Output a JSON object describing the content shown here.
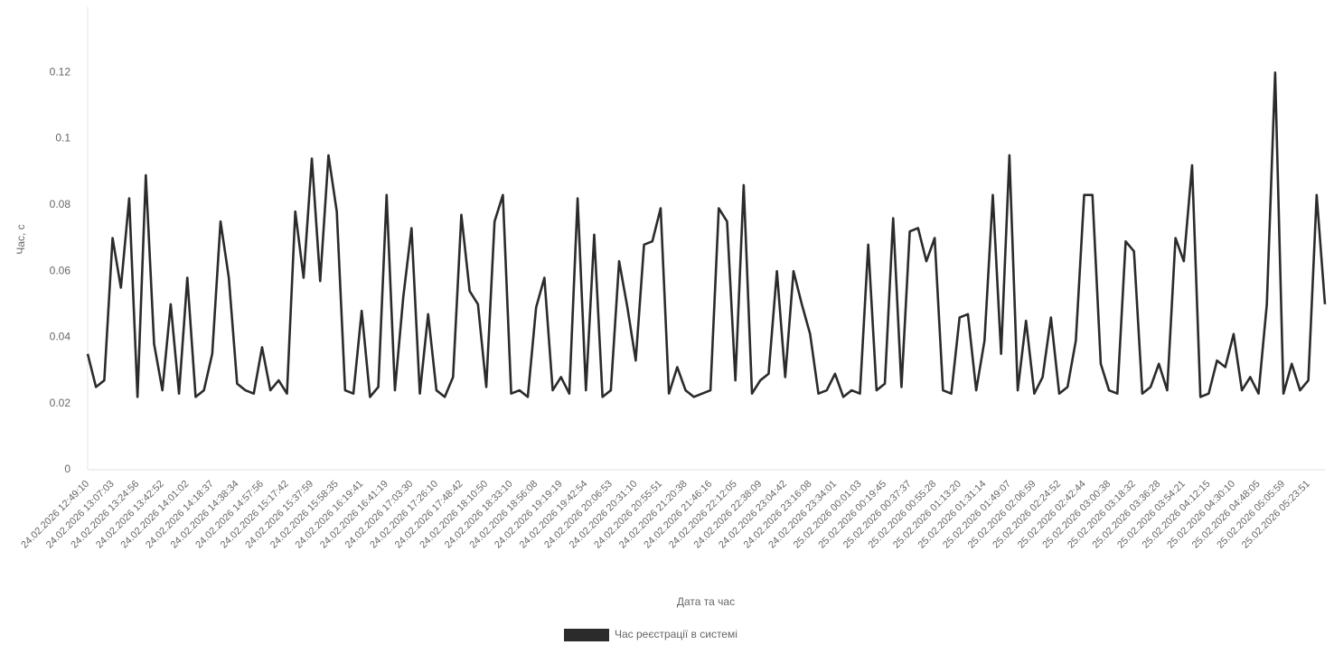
{
  "chart_data": {
    "type": "line",
    "y_label": "Час, с",
    "x_label": "Дата та час",
    "ylim": [
      0,
      0.14
    ],
    "yticks": [
      0,
      0.02,
      0.04,
      0.06,
      0.08,
      0.1,
      0.12
    ],
    "grid": true,
    "legend": "bottom",
    "categories": [
      "24.02.2026 12:49:10",
      null,
      null,
      "24.02.2026 13:07:03",
      null,
      null,
      "24.02.2026 13:24:56",
      null,
      null,
      "24.02.2026 13:42:52",
      null,
      null,
      "24.02.2026 14:01:02",
      null,
      null,
      "24.02.2026 14:18:37",
      null,
      null,
      "24.02.2026 14:38:34",
      null,
      null,
      "24.02.2026 14:57:56",
      null,
      null,
      "24.02.2026 15:17:42",
      null,
      null,
      "24.02.2026 15:37:59",
      null,
      null,
      "24.02.2026 15:58:35",
      null,
      null,
      "24.02.2026 16:19:41",
      null,
      null,
      "24.02.2026 16:41:19",
      null,
      null,
      "24.02.2026 17:03:30",
      null,
      null,
      "24.02.2026 17:26:10",
      null,
      null,
      "24.02.2026 17:48:42",
      null,
      null,
      "24.02.2026 18:10:50",
      null,
      null,
      "24.02.2026 18:33:10",
      null,
      null,
      "24.02.2026 18:56:08",
      null,
      null,
      "24.02.2026 19:19:19",
      null,
      null,
      "24.02.2026 19:42:54",
      null,
      null,
      "24.02.2026 20:06:53",
      null,
      null,
      "24.02.2026 20:31:10",
      null,
      null,
      "24.02.2026 20:55:51",
      null,
      null,
      "24.02.2026 21:20:38",
      null,
      null,
      "24.02.2026 21:46:16",
      null,
      null,
      "24.02.2026 22:12:05",
      null,
      null,
      "24.02.2026 22:38:09",
      null,
      null,
      "24.02.2026 23:04:42",
      null,
      null,
      "24.02.2026 23:16:08",
      null,
      null,
      "24.02.2026 23:34:01",
      null,
      null,
      "25.02.2026 00:01:03",
      null,
      null,
      "25.02.2026 00:19:45",
      null,
      null,
      "25.02.2026 00:37:37",
      null,
      null,
      "25.02.2026 00:55:28",
      null,
      null,
      "25.02.2026 01:13:20",
      null,
      null,
      "25.02.2026 01:31:14",
      null,
      null,
      "25.02.2026 01:49:07",
      null,
      null,
      "25.02.2026 02:06:59",
      null,
      null,
      "25.02.2026 02:24:52",
      null,
      null,
      "25.02.2026 02:42:44",
      null,
      null,
      "25.02.2026 03:00:38",
      null,
      null,
      "25.02.2026 03:18:32",
      null,
      null,
      "25.02.2026 03:36:28",
      null,
      null,
      "25.02.2026 03:54:21",
      null,
      null,
      "25.02.2026 04:12:15",
      null,
      null,
      "25.02.2026 04:30:10",
      null,
      null,
      "25.02.2026 04:48:05",
      null,
      null,
      "25.02.2026 05:05:59",
      null,
      null,
      "25.02.2026 05:23:51",
      null,
      null
    ],
    "series": [
      {
        "name": "Час реєстрації в системі",
        "color": "#2b2b2b",
        "values": [
          0.035,
          0.025,
          0.027,
          0.07,
          0.055,
          0.082,
          0.022,
          0.089,
          0.038,
          0.024,
          0.05,
          0.023,
          0.058,
          0.022,
          0.024,
          0.035,
          0.075,
          0.058,
          0.026,
          0.024,
          0.023,
          0.037,
          0.024,
          0.027,
          0.023,
          0.078,
          0.058,
          0.094,
          0.057,
          0.095,
          0.078,
          0.024,
          0.023,
          0.048,
          0.022,
          0.025,
          0.083,
          0.024,
          0.052,
          0.073,
          0.023,
          0.047,
          0.024,
          0.022,
          0.028,
          0.077,
          0.054,
          0.05,
          0.025,
          0.075,
          0.083,
          0.023,
          0.024,
          0.022,
          0.049,
          0.058,
          0.024,
          0.028,
          0.023,
          0.082,
          0.024,
          0.071,
          0.022,
          0.024,
          0.063,
          0.049,
          0.033,
          0.068,
          0.069,
          0.079,
          0.023,
          0.031,
          0.024,
          0.022,
          0.023,
          0.024,
          0.079,
          0.075,
          0.027,
          0.086,
          0.023,
          0.027,
          0.029,
          0.06,
          0.028,
          0.06,
          0.05,
          0.041,
          0.023,
          0.024,
          0.029,
          0.022,
          0.024,
          0.023,
          0.068,
          0.024,
          0.026,
          0.076,
          0.025,
          0.072,
          0.073,
          0.063,
          0.07,
          0.024,
          0.023,
          0.046,
          0.047,
          0.024,
          0.039,
          0.083,
          0.035,
          0.095,
          0.024,
          0.045,
          0.023,
          0.028,
          0.046,
          0.023,
          0.025,
          0.039,
          0.083,
          0.083,
          0.032,
          0.024,
          0.023,
          0.069,
          0.066,
          0.023,
          0.025,
          0.032,
          0.024,
          0.07,
          0.063,
          0.092,
          0.022,
          0.023,
          0.033,
          0.031,
          0.041,
          0.024,
          0.028,
          0.023,
          0.05,
          0.12,
          0.023,
          0.032,
          0.024,
          0.027,
          0.083,
          0.05
        ]
      }
    ]
  }
}
